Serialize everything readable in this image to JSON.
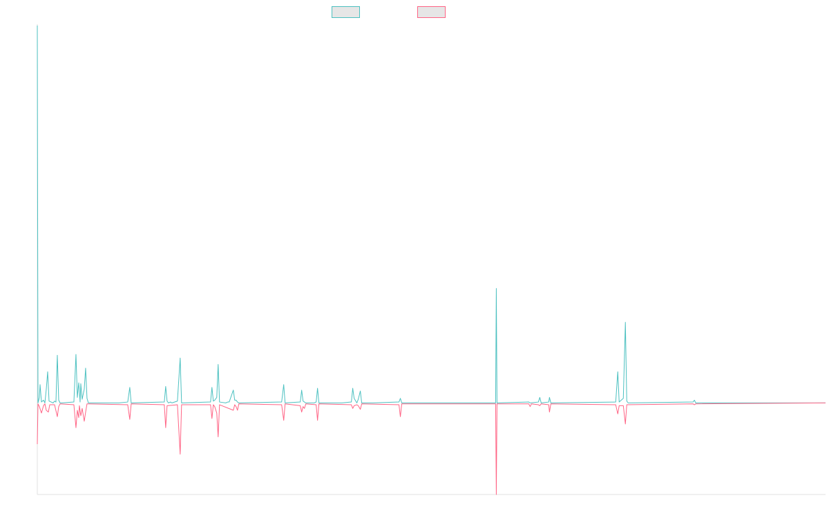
{
  "chart_data": {
    "type": "line",
    "title": "",
    "xlabel": "",
    "ylabel": "",
    "grid": false,
    "legend_position": "top-center",
    "ylim": [
      -100,
      412
    ],
    "xlim": [
      0,
      1142
    ],
    "baseline": 0,
    "series": [
      {
        "color": "#4bc0c0",
        "fill": "#e6e6e6",
        "points": [
          [
            0,
            412
          ],
          [
            1,
            0
          ],
          [
            3,
            6
          ],
          [
            4,
            20
          ],
          [
            6,
            1
          ],
          [
            9,
            3
          ],
          [
            11,
            0
          ],
          [
            13,
            15
          ],
          [
            15,
            34
          ],
          [
            17,
            2
          ],
          [
            20,
            1
          ],
          [
            23,
            0
          ],
          [
            25,
            2
          ],
          [
            27,
            1
          ],
          [
            29,
            52
          ],
          [
            31,
            3
          ],
          [
            33,
            0
          ],
          [
            36,
            0
          ],
          [
            53,
            1
          ],
          [
            56,
            53
          ],
          [
            58,
            6
          ],
          [
            60,
            22
          ],
          [
            62,
            1
          ],
          [
            63,
            21
          ],
          [
            65,
            4
          ],
          [
            68,
            15
          ],
          [
            70,
            38
          ],
          [
            72,
            5
          ],
          [
            74,
            0
          ],
          [
            91,
            0
          ],
          [
            116,
            0
          ],
          [
            118,
            0
          ],
          [
            131,
            1
          ],
          [
            134,
            17
          ],
          [
            136,
            0
          ],
          [
            184,
            1
          ],
          [
            186,
            18
          ],
          [
            188,
            2
          ],
          [
            190,
            0
          ],
          [
            193,
            1
          ],
          [
            195,
            0
          ],
          [
            203,
            2
          ],
          [
            207,
            49
          ],
          [
            209,
            0
          ],
          [
            251,
            1
          ],
          [
            253,
            17
          ],
          [
            255,
            2
          ],
          [
            257,
            3
          ],
          [
            260,
            6
          ],
          [
            262,
            42
          ],
          [
            264,
            1
          ],
          [
            273,
            0
          ],
          [
            276,
            1
          ],
          [
            278,
            1
          ],
          [
            284,
            14
          ],
          [
            286,
            3
          ],
          [
            288,
            3
          ],
          [
            290,
            1
          ],
          [
            292,
            0
          ],
          [
            354,
            1
          ],
          [
            357,
            20
          ],
          [
            359,
            0
          ],
          [
            381,
            1
          ],
          [
            383,
            14
          ],
          [
            385,
            2
          ],
          [
            387,
            1
          ],
          [
            389,
            0
          ],
          [
            401,
            0
          ],
          [
            404,
            1
          ],
          [
            406,
            16
          ],
          [
            408,
            0
          ],
          [
            441,
            0
          ],
          [
            455,
            1
          ],
          [
            457,
            16
          ],
          [
            459,
            5
          ],
          [
            463,
            0
          ],
          [
            465,
            4
          ],
          [
            468,
            13
          ],
          [
            470,
            0
          ],
          [
            482,
            0
          ],
          [
            486,
            0
          ],
          [
            524,
            1
          ],
          [
            526,
            5
          ],
          [
            528,
            0
          ],
          [
            664,
            0
          ],
          [
            665,
            125
          ],
          [
            666,
            0
          ],
          [
            712,
            1
          ],
          [
            714,
            0
          ],
          [
            726,
            1
          ],
          [
            728,
            6
          ],
          [
            730,
            0
          ],
          [
            741,
            1
          ],
          [
            742,
            6
          ],
          [
            744,
            0
          ],
          [
            838,
            1
          ],
          [
            841,
            34
          ],
          [
            843,
            1
          ],
          [
            849,
            5
          ],
          [
            852,
            88
          ],
          [
            854,
            2
          ],
          [
            856,
            0
          ],
          [
            950,
            1
          ],
          [
            952,
            3
          ],
          [
            954,
            0
          ],
          [
            1142,
            0
          ]
        ]
      },
      {
        "color": "#ff6384",
        "fill": "#e6e6e6",
        "points": [
          [
            0,
            -45
          ],
          [
            1,
            -1
          ],
          [
            3,
            -4
          ],
          [
            6,
            -11
          ],
          [
            9,
            -3
          ],
          [
            11,
            -1
          ],
          [
            13,
            -8
          ],
          [
            16,
            -10
          ],
          [
            18,
            -2
          ],
          [
            25,
            -2
          ],
          [
            29,
            -15
          ],
          [
            31,
            -4
          ],
          [
            33,
            -1
          ],
          [
            53,
            -2
          ],
          [
            56,
            -27
          ],
          [
            58,
            -8
          ],
          [
            60,
            -16
          ],
          [
            61,
            -3
          ],
          [
            63,
            -14
          ],
          [
            65,
            -6
          ],
          [
            68,
            -20
          ],
          [
            70,
            -10
          ],
          [
            72,
            -1
          ],
          [
            131,
            -2
          ],
          [
            134,
            -18
          ],
          [
            136,
            -1
          ],
          [
            184,
            -2
          ],
          [
            186,
            -27
          ],
          [
            188,
            -3
          ],
          [
            203,
            -2
          ],
          [
            207,
            -56
          ],
          [
            209,
            -2
          ],
          [
            251,
            -2
          ],
          [
            253,
            -17
          ],
          [
            255,
            -2
          ],
          [
            257,
            -4
          ],
          [
            260,
            -11
          ],
          [
            262,
            -37
          ],
          [
            264,
            -2
          ],
          [
            284,
            -8
          ],
          [
            286,
            -2
          ],
          [
            288,
            -4
          ],
          [
            290,
            -8
          ],
          [
            292,
            -1
          ],
          [
            354,
            -2
          ],
          [
            357,
            -19
          ],
          [
            359,
            -1
          ],
          [
            381,
            -3
          ],
          [
            383,
            -10
          ],
          [
            385,
            -4
          ],
          [
            387,
            -6
          ],
          [
            389,
            -1
          ],
          [
            404,
            -2
          ],
          [
            406,
            -19
          ],
          [
            408,
            -1
          ],
          [
            455,
            -2
          ],
          [
            457,
            -6
          ],
          [
            459,
            -3
          ],
          [
            463,
            -2
          ],
          [
            465,
            -3
          ],
          [
            468,
            -7
          ],
          [
            470,
            -1
          ],
          [
            524,
            -2
          ],
          [
            526,
            -15
          ],
          [
            528,
            -1
          ],
          [
            664,
            -1
          ],
          [
            665,
            -100
          ],
          [
            666,
            -1
          ],
          [
            712,
            -1
          ],
          [
            714,
            -4
          ],
          [
            716,
            -1
          ],
          [
            726,
            -2
          ],
          [
            728,
            -3
          ],
          [
            730,
            -1
          ],
          [
            741,
            -2
          ],
          [
            742,
            -10
          ],
          [
            744,
            -1
          ],
          [
            838,
            -2
          ],
          [
            841,
            -12
          ],
          [
            843,
            -3
          ],
          [
            849,
            -3
          ],
          [
            852,
            -23
          ],
          [
            854,
            -2
          ],
          [
            950,
            -1
          ],
          [
            952,
            -2
          ],
          [
            954,
            -1
          ],
          [
            1142,
            0
          ]
        ]
      }
    ]
  }
}
